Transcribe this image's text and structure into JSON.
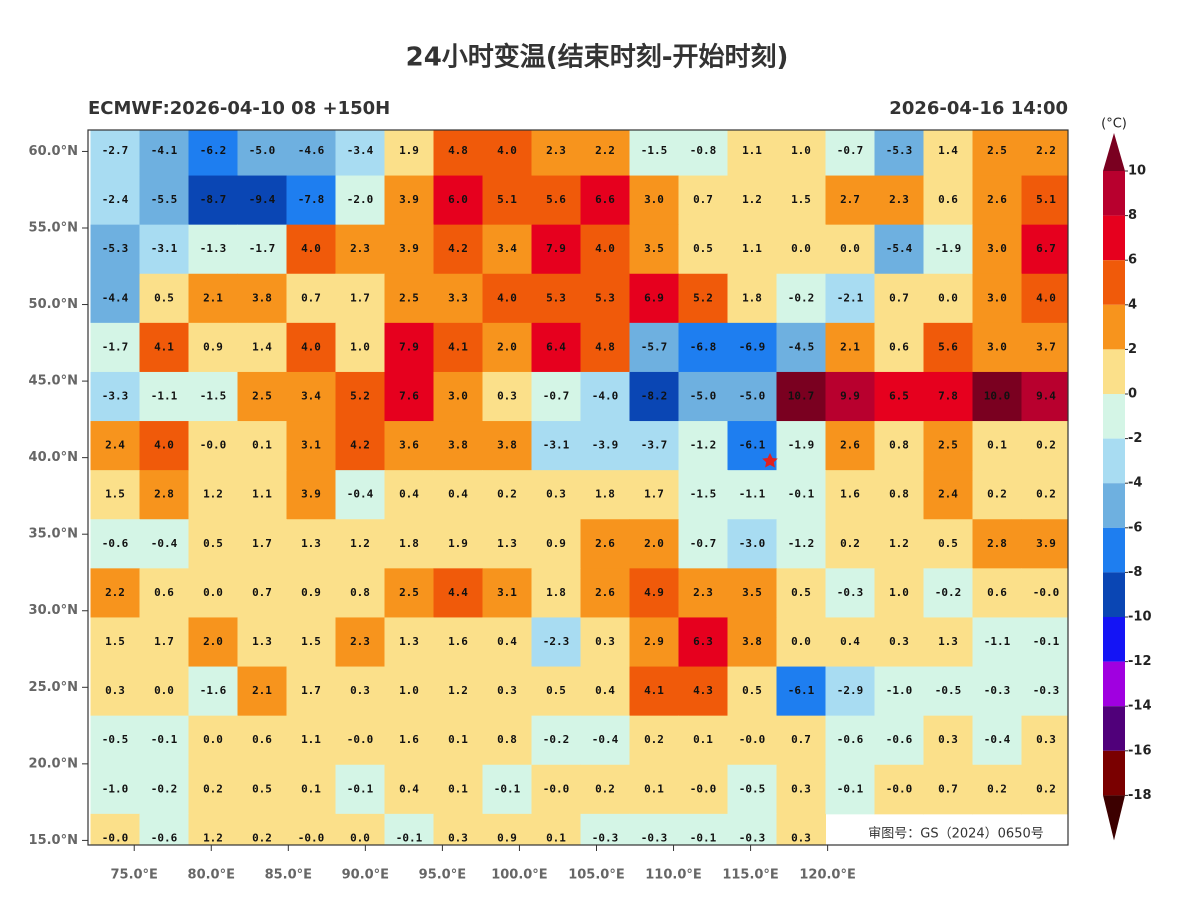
{
  "header": {
    "title": "24小时变温(结束时刻-开始时刻)",
    "left": "ECMWF:2026-04-10 08 +150H",
    "right": "2026-04-16 14:00"
  },
  "map": {
    "extent": {
      "lon": [
        72,
        135.6
      ],
      "lat": [
        14.7,
        61.4
      ]
    },
    "lat_ticks": [
      {
        "value": 60,
        "label": "60.0°N"
      },
      {
        "value": 55,
        "label": "55.0°N"
      },
      {
        "value": 50,
        "label": "50.0°N"
      },
      {
        "value": 45,
        "label": "45.0°N"
      },
      {
        "value": 40,
        "label": "40.0°N"
      },
      {
        "value": 35,
        "label": "35.0°N"
      },
      {
        "value": 30,
        "label": "30.0°N"
      },
      {
        "value": 25,
        "label": "25.0°N"
      },
      {
        "value": 20,
        "label": "20.0°N"
      },
      {
        "value": 15,
        "label": "15.0°N"
      }
    ],
    "lon_ticks": [
      {
        "value": 75,
        "label": "75.0°E"
      },
      {
        "value": 80,
        "label": "80.0°E"
      },
      {
        "value": 85,
        "label": "85.0°E"
      },
      {
        "value": 90,
        "label": "90.0°E"
      },
      {
        "value": 95,
        "label": "95.0°E"
      },
      {
        "value": 100,
        "label": "100.0°E"
      },
      {
        "value": 105,
        "label": "105.0°E"
      },
      {
        "value": 110,
        "label": "110.0°E"
      },
      {
        "value": 115,
        "label": "115.0°E"
      },
      {
        "value": 120,
        "label": "120.0°E"
      }
    ],
    "grid": [
      [
        "-2.7",
        "-4.1",
        "-6.2",
        "-5.0",
        "-4.6",
        "-3.4",
        "1.9",
        "4.8",
        "4.0",
        "2.3",
        "2.2",
        "-1.5",
        "-0.8",
        "1.1",
        "1.0",
        "-0.7",
        "-5.3",
        "1.4",
        "2.5",
        "2.2"
      ],
      [
        "-2.4",
        "-5.5",
        "-8.7",
        "-9.4",
        "-7.8",
        "-2.0",
        "3.9",
        "6.0",
        "5.1",
        "5.6",
        "6.6",
        "3.0",
        "0.7",
        "1.2",
        "1.5",
        "2.7",
        "2.3",
        "0.6",
        "2.6",
        "5.1"
      ],
      [
        "-5.3",
        "-3.1",
        "-1.3",
        "-1.7",
        "4.0",
        "2.3",
        "3.9",
        "4.2",
        "3.4",
        "7.9",
        "4.0",
        "3.5",
        "0.5",
        "1.1",
        "0.0",
        "0.0",
        "-5.4",
        "-1.9",
        "3.0",
        "6.7"
      ],
      [
        "-4.4",
        "0.5",
        "2.1",
        "3.8",
        "0.7",
        "1.7",
        "2.5",
        "3.3",
        "4.0",
        "5.3",
        "5.3",
        "6.9",
        "5.2",
        "1.8",
        "-0.2",
        "-2.1",
        "0.7",
        "0.0",
        "3.0",
        "4.0"
      ],
      [
        "-1.7",
        "4.1",
        "0.9",
        "1.4",
        "4.0",
        "1.0",
        "7.9",
        "4.1",
        "2.0",
        "6.4",
        "4.8",
        "-5.7",
        "-6.8",
        "-6.9",
        "-4.5",
        "2.1",
        "0.6",
        "5.6",
        "3.0",
        "3.7"
      ],
      [
        "-3.3",
        "-1.1",
        "-1.5",
        "2.5",
        "3.4",
        "5.2",
        "7.6",
        "3.0",
        "0.3",
        "-0.7",
        "-4.0",
        "-8.2",
        "-5.0",
        "-5.0",
        "10.7",
        "9.9",
        "6.5",
        "7.8",
        "10.0",
        "9.4"
      ],
      [
        "2.4",
        "4.0",
        "-0.0",
        "0.1",
        "3.1",
        "4.2",
        "3.6",
        "3.8",
        "3.8",
        "-3.1",
        "-3.9",
        "-3.7",
        "-1.2",
        "-6.1",
        "-1.9",
        "2.6",
        "0.8",
        "2.5",
        "0.1",
        "0.2"
      ],
      [
        "1.5",
        "2.8",
        "1.2",
        "1.1",
        "3.9",
        "-0.4",
        "0.4",
        "0.4",
        "0.2",
        "0.3",
        "1.8",
        "1.7",
        "-1.5",
        "-1.1",
        "-0.1",
        "1.6",
        "0.8",
        "2.4",
        "0.2",
        "0.2"
      ],
      [
        "-0.6",
        "-0.4",
        "0.5",
        "1.7",
        "1.3",
        "1.2",
        "1.8",
        "1.9",
        "1.3",
        "0.9",
        "2.6",
        "2.0",
        "-0.7",
        "-3.0",
        "-1.2",
        "0.2",
        "1.2",
        "0.5",
        "2.8",
        "3.9"
      ],
      [
        "2.2",
        "0.6",
        "0.0",
        "0.7",
        "0.9",
        "0.8",
        "2.5",
        "4.4",
        "3.1",
        "1.8",
        "2.6",
        "4.9",
        "2.3",
        "3.5",
        "0.5",
        "-0.3",
        "1.0",
        "-0.2",
        "0.6",
        "-0.0"
      ],
      [
        "1.5",
        "1.7",
        "2.0",
        "1.3",
        "1.5",
        "2.3",
        "1.3",
        "1.6",
        "0.4",
        "-2.3",
        "0.3",
        "2.9",
        "6.3",
        "3.8",
        "0.0",
        "0.4",
        "0.3",
        "1.3",
        "-1.1",
        "-0.1"
      ],
      [
        "0.3",
        "0.0",
        "-1.6",
        "2.1",
        "1.7",
        "0.3",
        "1.0",
        "1.2",
        "0.3",
        "0.5",
        "0.4",
        "4.1",
        "4.3",
        "0.5",
        "-6.1",
        "-2.9",
        "-1.0",
        "-0.5",
        "-0.3",
        "-0.3"
      ],
      [
        "-0.5",
        "-0.1",
        "0.0",
        "0.6",
        "1.1",
        "-0.0",
        "1.6",
        "0.1",
        "0.8",
        "-0.2",
        "-0.4",
        "0.2",
        "0.1",
        "-0.0",
        "0.7",
        "-0.6",
        "-0.6",
        "0.3",
        "-0.4",
        "0.3"
      ],
      [
        "-1.0",
        "-0.2",
        "0.2",
        "0.5",
        "0.1",
        "-0.1",
        "0.4",
        "0.1",
        "-0.1",
        "-0.0",
        "0.2",
        "0.1",
        "-0.0",
        "-0.5",
        "0.3",
        "-0.1",
        "-0.0",
        "0.7",
        "0.2",
        "0.2"
      ],
      [
        "-0.0",
        "-0.6",
        "1.2",
        "0.2",
        "-0.0",
        "0.0",
        "-0.1",
        "0.3",
        "0.9",
        "0.1",
        "-0.3",
        "-0.3",
        "-0.1",
        "-0.3",
        "0.3"
      ]
    ],
    "review_number": "审图号：GS（2024）0650号"
  },
  "colorbar": {
    "unit": "(°C)",
    "levels": [
      10,
      8,
      6,
      4,
      2,
      0,
      -2,
      -4,
      -6,
      -8,
      -10,
      -12,
      -14,
      -16,
      -18
    ],
    "colors": [
      "#7a0020",
      "#b8002e",
      "#e6001e",
      "#f05a0a",
      "#f7941d",
      "#fbe08a",
      "#d4f5e6",
      "#a8dcf2",
      "#6eb0e0",
      "#1e7ef0",
      "#0a46b4",
      "#1414f5",
      "#a000e0",
      "#50007a",
      "#7a0000",
      "#3c0000"
    ]
  }
}
